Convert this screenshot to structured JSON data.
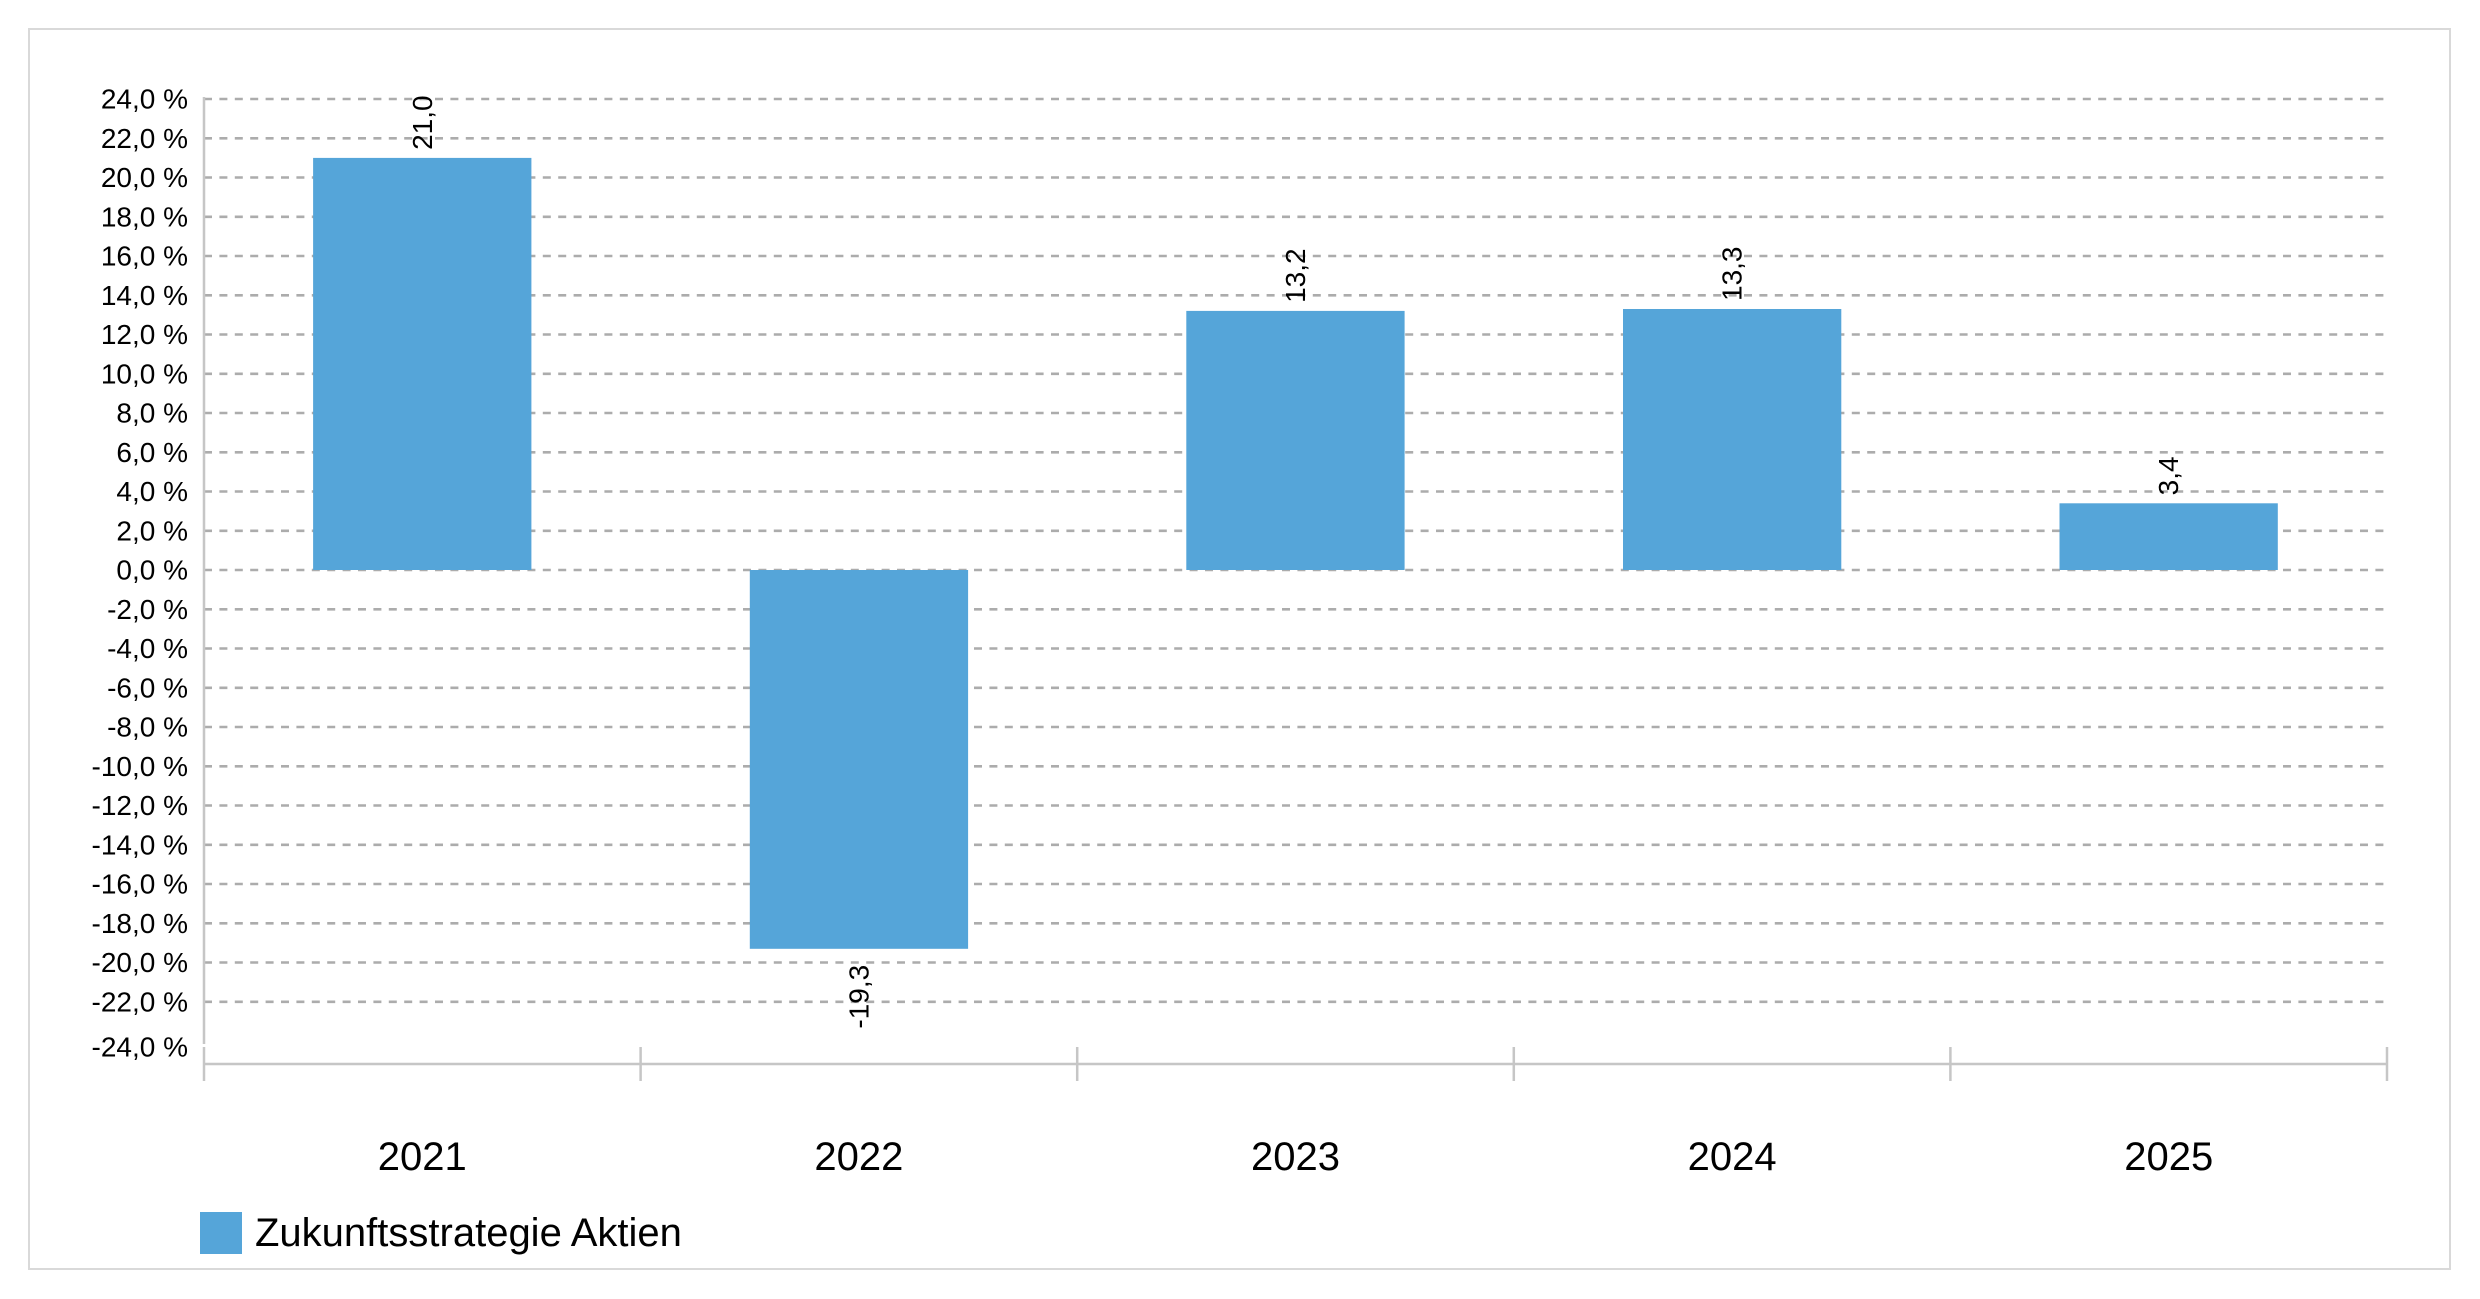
{
  "chart_data": {
    "type": "bar",
    "title": "",
    "categories": [
      "2021",
      "2022",
      "2023",
      "2024",
      "2025"
    ],
    "series": [
      {
        "name": "Zukunftsstrategie Aktien",
        "values": [
          21.0,
          -19.3,
          13.2,
          13.3,
          3.4
        ],
        "value_labels": [
          "21,0",
          "-19,3",
          "13,2",
          "13,3",
          "3,4"
        ],
        "color": "#55A5D9"
      }
    ],
    "xlabel": "",
    "ylabel": "",
    "y_unit": "%",
    "ylim": [
      -24,
      24
    ],
    "y_tick_step": 2,
    "y_tick_labels": [
      "24,0 %",
      "22,0 %",
      "20,0 %",
      "18,0 %",
      "16,0 %",
      "14,0 %",
      "12,0 %",
      "10,0 %",
      "8,0 %",
      "6,0 %",
      "4,0 %",
      "2,0 %",
      "0,0 %",
      "-2,0 %",
      "-4,0 %",
      "-6,0 %",
      "-8,0 %",
      "-10,0 %",
      "-12,0 %",
      "-14,0 %",
      "-16,0 %",
      "-18,0 %",
      "-20,0 %",
      "-22,0 %",
      "-24,0 %"
    ],
    "grid": "horizontal-dashed",
    "legend_position": "bottom-left",
    "value_label_rotation": -90,
    "colors": {
      "bar": "#55A5D9",
      "grid": "#ACACAC",
      "axis": "#C6C6C6",
      "text": "#000000",
      "card_border": "#D9D9D9",
      "background": "#FFFFFF"
    }
  },
  "legend": {
    "label": "Zukunftsstrategie Aktien"
  }
}
